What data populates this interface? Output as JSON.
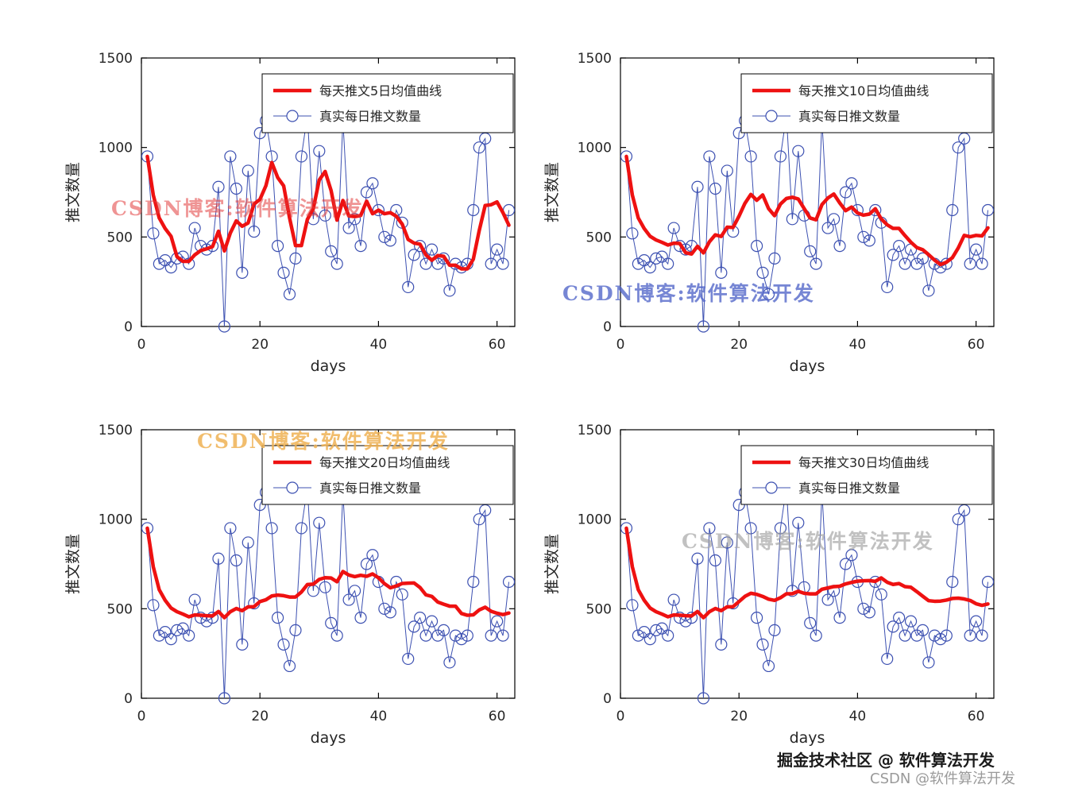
{
  "page": {
    "background": "#ffffff"
  },
  "watermarks": {
    "top_left": "CSDN博客:软件算法开发",
    "top_right": "CSDN博客:软件算法开发",
    "bottom_left": "CSDN博客:软件算法开发",
    "bottom_right": "CSDN博客:软件算法开发"
  },
  "footer": {
    "juejin": "掘金技术社区 @ 软件算法开发",
    "csdn": "CSDN @软件算法开发"
  },
  "colors": {
    "ma_line": "#ee1111",
    "raw_line": "#3c50b1",
    "axis": "#000000",
    "tick_label": "#262626"
  },
  "daily_tweets": {
    "x_start": 1,
    "values": [
      950,
      520,
      350,
      370,
      330,
      380,
      390,
      350,
      550,
      450,
      430,
      450,
      780,
      0,
      950,
      770,
      300,
      870,
      530,
      1080,
      1150,
      950,
      450,
      300,
      180,
      380,
      950,
      1180,
      600,
      980,
      620,
      420,
      350,
      1150,
      550,
      600,
      450,
      750,
      800,
      650,
      500,
      480,
      650,
      580,
      220,
      400,
      450,
      350,
      430,
      350,
      380,
      200,
      350,
      330,
      350,
      650,
      1000,
      1050,
      350,
      430,
      350,
      650
    ]
  },
  "chart_data": [
    {
      "type": "line",
      "title": "",
      "xlabel": "days",
      "ylabel": "推文数量",
      "xlim": [
        0,
        63
      ],
      "ylim": [
        0,
        1500
      ],
      "xticks": [
        0,
        20,
        40,
        60
      ],
      "yticks": [
        0,
        500,
        1000,
        1500
      ],
      "grid": false,
      "legend_position": "upper right",
      "ma_window": 5,
      "series": [
        {
          "name": "每天推文5日均值曲线",
          "derived": "moving_average",
          "window": 5,
          "color": "#ee1111",
          "style": "thick"
        },
        {
          "name": "真实每日推文数量",
          "source": "daily_tweets",
          "color": "#3c50b1",
          "style": "circle-line"
        }
      ]
    },
    {
      "type": "line",
      "title": "",
      "xlabel": "days",
      "ylabel": "推文数量",
      "xlim": [
        0,
        63
      ],
      "ylim": [
        0,
        1500
      ],
      "xticks": [
        0,
        20,
        40,
        60
      ],
      "yticks": [
        0,
        500,
        1000,
        1500
      ],
      "grid": false,
      "legend_position": "upper right",
      "ma_window": 10,
      "series": [
        {
          "name": "每天推文10日均值曲线",
          "derived": "moving_average",
          "window": 10,
          "color": "#ee1111",
          "style": "thick"
        },
        {
          "name": "真实每日推文数量",
          "source": "daily_tweets",
          "color": "#3c50b1",
          "style": "circle-line"
        }
      ]
    },
    {
      "type": "line",
      "title": "",
      "xlabel": "days",
      "ylabel": "推文数量",
      "xlim": [
        0,
        63
      ],
      "ylim": [
        0,
        1500
      ],
      "xticks": [
        0,
        20,
        40,
        60
      ],
      "yticks": [
        0,
        500,
        1000,
        1500
      ],
      "grid": false,
      "legend_position": "upper right",
      "ma_window": 20,
      "series": [
        {
          "name": "每天推文20日均值曲线",
          "derived": "moving_average",
          "window": 20,
          "color": "#ee1111",
          "style": "thick"
        },
        {
          "name": "真实每日推文数量",
          "source": "daily_tweets",
          "color": "#3c50b1",
          "style": "circle-line"
        }
      ]
    },
    {
      "type": "line",
      "title": "",
      "xlabel": "days",
      "ylabel": "推文数量",
      "xlim": [
        0,
        63
      ],
      "ylim": [
        0,
        1500
      ],
      "xticks": [
        0,
        20,
        40,
        60
      ],
      "yticks": [
        0,
        500,
        1000,
        1500
      ],
      "grid": false,
      "legend_position": "upper right",
      "ma_window": 30,
      "series": [
        {
          "name": "每天推文30日均值曲线",
          "derived": "moving_average",
          "window": 30,
          "color": "#ee1111",
          "style": "thick"
        },
        {
          "name": "真实每日推文数量",
          "source": "daily_tweets",
          "color": "#3c50b1",
          "style": "circle-line"
        }
      ]
    }
  ]
}
